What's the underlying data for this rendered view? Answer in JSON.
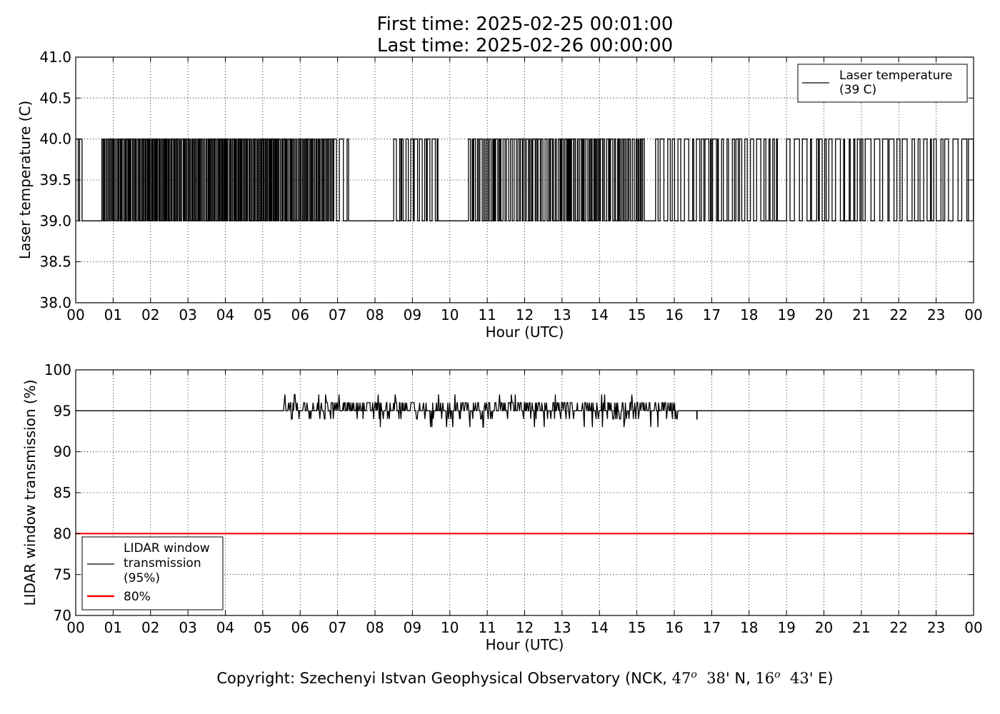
{
  "header": {
    "title_line1": "First time: 2025-02-25 00:01:00",
    "title_line2": "Last time: 2025-02-26 00:00:00"
  },
  "footer": {
    "copyright_prefix": "Copyright: Szechenyi Istvan Geophysical Observatory (NCK, ",
    "lat_deg": "47",
    "lat_min": "38",
    "lat_hem": "N",
    "lon_deg": "16",
    "lon_min": "43",
    "lon_hem": "E)",
    "degree_symbol": "o"
  },
  "colors": {
    "series": "#000000",
    "threshold": "#ff0000",
    "grid": "#a0a0a0"
  },
  "chart_data": [
    {
      "type": "line",
      "xlabel": "Hour (UTC)",
      "ylabel": "Laser temperature (C)",
      "xlim": [
        0,
        24
      ],
      "ylim": [
        38.0,
        41.0
      ],
      "yticks": [
        "38.0",
        "38.5",
        "39.0",
        "39.5",
        "40.0",
        "40.5",
        "41.0"
      ],
      "xticks": [
        "00",
        "01",
        "02",
        "03",
        "04",
        "05",
        "06",
        "07",
        "08",
        "09",
        "10",
        "11",
        "12",
        "13",
        "14",
        "15",
        "16",
        "17",
        "18",
        "19",
        "20",
        "21",
        "22",
        "23",
        "00"
      ],
      "grid": "dotted",
      "legend_placement": "top-right",
      "series": [
        {
          "name": "Laser temperature\n(39 C)",
          "low": 39.0,
          "high": 40.0,
          "segments": [
            {
              "start": 0.0,
              "end": 0.25,
              "mode": "toggle",
              "rate": 20
            },
            {
              "start": 0.25,
              "end": 0.7,
              "mode": "low"
            },
            {
              "start": 0.7,
              "end": 6.9,
              "mode": "toggle",
              "rate": 45
            },
            {
              "start": 6.9,
              "end": 7.3,
              "mode": "toggle",
              "rate": 10
            },
            {
              "start": 7.3,
              "end": 8.5,
              "mode": "low"
            },
            {
              "start": 8.5,
              "end": 9.7,
              "mode": "toggle",
              "rate": 18
            },
            {
              "start": 9.7,
              "end": 10.5,
              "mode": "low"
            },
            {
              "start": 10.5,
              "end": 15.2,
              "mode": "toggle",
              "rate": 30
            },
            {
              "start": 15.2,
              "end": 15.5,
              "mode": "low"
            },
            {
              "start": 15.5,
              "end": 18.8,
              "mode": "toggle",
              "rate": 16
            },
            {
              "start": 18.8,
              "end": 19.0,
              "mode": "low"
            },
            {
              "start": 19.0,
              "end": 24.0,
              "mode": "toggle",
              "rate": 12
            }
          ]
        }
      ]
    },
    {
      "type": "line",
      "xlabel": "Hour (UTC)",
      "ylabel": "LIDAR window transmission (%)",
      "xlim": [
        0,
        24
      ],
      "ylim": [
        70,
        100
      ],
      "yticks": [
        "70",
        "75",
        "80",
        "85",
        "90",
        "95",
        "100"
      ],
      "xticks": [
        "00",
        "01",
        "02",
        "03",
        "04",
        "05",
        "06",
        "07",
        "08",
        "09",
        "10",
        "11",
        "12",
        "13",
        "14",
        "15",
        "16",
        "17",
        "18",
        "19",
        "20",
        "21",
        "22",
        "23",
        "00"
      ],
      "grid": "dotted",
      "legend_placement": "bottom-left",
      "series": [
        {
          "name": "LIDAR window\ntransmission\n(95%)",
          "baseline": 95,
          "noisy_start": 5.55,
          "noisy_end": 16.15,
          "min": 93,
          "max": 97,
          "dip_at": 16.6,
          "dip_value": 94
        },
        {
          "name": "80%",
          "value": 80
        }
      ]
    }
  ]
}
